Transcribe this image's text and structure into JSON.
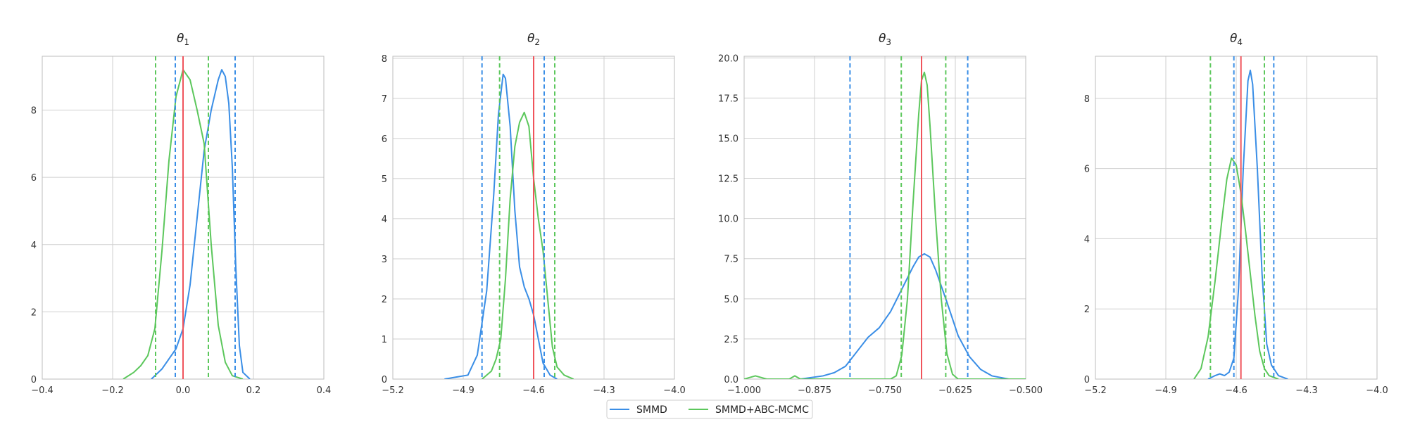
{
  "colors": {
    "smmd": "#3a8ee6",
    "abc": "#5cc75c",
    "truth": "#f0545c",
    "grid": "#cfcfcf",
    "frame": "#bdbdbd"
  },
  "legend": {
    "items": [
      {
        "label": "SMMD",
        "color_key": "smmd"
      },
      {
        "label": "SMMD+ABC-MCMC",
        "color_key": "abc"
      }
    ]
  },
  "chart_data": [
    {
      "type": "line",
      "title_symbol": "θ",
      "title_sub": "1",
      "xlim": [
        -0.4,
        0.4
      ],
      "ylim": [
        0,
        9.6
      ],
      "xticks": [
        -0.4,
        -0.2,
        0.0,
        0.2,
        0.4
      ],
      "xtick_labels": [
        "−0.4",
        "−0.2",
        "0.0",
        "0.2",
        "0.4"
      ],
      "yticks": [
        0,
        2,
        4,
        6,
        8
      ],
      "ytick_labels": [
        "0",
        "2",
        "4",
        "6",
        "8"
      ],
      "truth": 0.0,
      "smmd_ci": [
        -0.022,
        0.148
      ],
      "abc_ci": [
        -0.078,
        0.072
      ],
      "series": [
        {
          "name": "SMMD",
          "color_key": "smmd",
          "points": [
            [
              -0.09,
              0
            ],
            [
              -0.06,
              0.3
            ],
            [
              -0.04,
              0.6
            ],
            [
              -0.02,
              0.9
            ],
            [
              0.0,
              1.5
            ],
            [
              0.02,
              2.8
            ],
            [
              0.04,
              4.8
            ],
            [
              0.06,
              6.8
            ],
            [
              0.08,
              8.0
            ],
            [
              0.1,
              8.9
            ],
            [
              0.11,
              9.2
            ],
            [
              0.12,
              9.0
            ],
            [
              0.13,
              8.2
            ],
            [
              0.14,
              6.3
            ],
            [
              0.15,
              3.3
            ],
            [
              0.16,
              1.0
            ],
            [
              0.17,
              0.2
            ],
            [
              0.19,
              0
            ]
          ]
        },
        {
          "name": "SMMD+ABC-MCMC",
          "color_key": "abc",
          "points": [
            [
              -0.17,
              0
            ],
            [
              -0.14,
              0.2
            ],
            [
              -0.12,
              0.4
            ],
            [
              -0.1,
              0.7
            ],
            [
              -0.08,
              1.5
            ],
            [
              -0.06,
              3.8
            ],
            [
              -0.04,
              6.5
            ],
            [
              -0.02,
              8.4
            ],
            [
              0.0,
              9.2
            ],
            [
              0.02,
              8.9
            ],
            [
              0.04,
              8.0
            ],
            [
              0.06,
              7.0
            ],
            [
              0.08,
              4.0
            ],
            [
              0.1,
              1.6
            ],
            [
              0.12,
              0.5
            ],
            [
              0.14,
              0.1
            ],
            [
              0.17,
              0
            ]
          ]
        }
      ]
    },
    {
      "type": "line",
      "title_symbol": "θ",
      "title_sub": "2",
      "xlim": [
        -5.2,
        -4.0
      ],
      "ylim": [
        0,
        8.05
      ],
      "xticks": [
        -5.2,
        -4.9,
        -4.6,
        -4.3,
        -4.0
      ],
      "xtick_labels": [
        "−5.2",
        "−4.9",
        "−4.6",
        "−4.3",
        "−4.0"
      ],
      "yticks": [
        0,
        1,
        2,
        3,
        4,
        5,
        6,
        7,
        8
      ],
      "ytick_labels": [
        "0",
        "1",
        "2",
        "3",
        "4",
        "5",
        "6",
        "7",
        "8"
      ],
      "truth": -4.6,
      "smmd_ci": [
        -4.82,
        -4.555
      ],
      "abc_ci": [
        -4.745,
        -4.51
      ],
      "series": [
        {
          "name": "SMMD",
          "color_key": "smmd",
          "points": [
            [
              -4.98,
              0
            ],
            [
              -4.93,
              0.05
            ],
            [
              -4.88,
              0.1
            ],
            [
              -4.84,
              0.6
            ],
            [
              -4.8,
              2.2
            ],
            [
              -4.77,
              4.6
            ],
            [
              -4.75,
              6.6
            ],
            [
              -4.73,
              7.6
            ],
            [
              -4.72,
              7.5
            ],
            [
              -4.7,
              6.3
            ],
            [
              -4.68,
              4.2
            ],
            [
              -4.66,
              2.8
            ],
            [
              -4.64,
              2.3
            ],
            [
              -4.62,
              2.0
            ],
            [
              -4.6,
              1.6
            ],
            [
              -4.58,
              1.0
            ],
            [
              -4.56,
              0.4
            ],
            [
              -4.53,
              0.1
            ],
            [
              -4.5,
              0
            ]
          ]
        },
        {
          "name": "SMMD+ABC-MCMC",
          "color_key": "abc",
          "points": [
            [
              -4.82,
              0
            ],
            [
              -4.78,
              0.2
            ],
            [
              -4.76,
              0.5
            ],
            [
              -4.74,
              1.0
            ],
            [
              -4.72,
              2.5
            ],
            [
              -4.7,
              4.5
            ],
            [
              -4.68,
              5.8
            ],
            [
              -4.66,
              6.4
            ],
            [
              -4.64,
              6.65
            ],
            [
              -4.62,
              6.3
            ],
            [
              -4.6,
              5.0
            ],
            [
              -4.58,
              4.0
            ],
            [
              -4.56,
              3.2
            ],
            [
              -4.54,
              2.0
            ],
            [
              -4.52,
              0.8
            ],
            [
              -4.5,
              0.3
            ],
            [
              -4.47,
              0.1
            ],
            [
              -4.43,
              0
            ]
          ]
        }
      ]
    },
    {
      "type": "line",
      "title_symbol": "θ",
      "title_sub": "3",
      "xlim": [
        -1.0,
        -0.5
      ],
      "ylim": [
        0,
        20.1
      ],
      "xticks": [
        -1.0,
        -0.875,
        -0.75,
        -0.625,
        -0.5
      ],
      "xtick_labels": [
        "−1.000",
        "−0.875",
        "−0.750",
        "−0.625",
        "−0.500"
      ],
      "yticks": [
        0,
        2.5,
        5,
        7.5,
        10,
        12.5,
        15,
        17.5,
        20
      ],
      "ytick_labels": [
        "0.0",
        "2.5",
        "5.0",
        "7.5",
        "10.0",
        "12.5",
        "15.0",
        "17.5",
        "20.0"
      ],
      "truth": -0.685,
      "smmd_ci": [
        -0.812,
        -0.603
      ],
      "abc_ci": [
        -0.721,
        -0.642
      ],
      "series": [
        {
          "name": "SMMD",
          "color_key": "smmd",
          "points": [
            [
              -0.9,
              0
            ],
            [
              -0.86,
              0.2
            ],
            [
              -0.84,
              0.4
            ],
            [
              -0.82,
              0.8
            ],
            [
              -0.8,
              1.7
            ],
            [
              -0.78,
              2.6
            ],
            [
              -0.76,
              3.2
            ],
            [
              -0.74,
              4.2
            ],
            [
              -0.72,
              5.6
            ],
            [
              -0.7,
              7.0
            ],
            [
              -0.69,
              7.6
            ],
            [
              -0.68,
              7.8
            ],
            [
              -0.67,
              7.6
            ],
            [
              -0.66,
              6.8
            ],
            [
              -0.64,
              4.8
            ],
            [
              -0.62,
              2.7
            ],
            [
              -0.6,
              1.4
            ],
            [
              -0.58,
              0.6
            ],
            [
              -0.56,
              0.2
            ],
            [
              -0.53,
              0
            ]
          ]
        },
        {
          "name": "SMMD+ABC-MCMC",
          "color_key": "abc",
          "points": [
            [
              -1.0,
              0
            ],
            [
              -0.99,
              0.1
            ],
            [
              -0.98,
              0.2
            ],
            [
              -0.97,
              0.1
            ],
            [
              -0.96,
              0
            ],
            [
              -0.92,
              0
            ],
            [
              -0.91,
              0.2
            ],
            [
              -0.9,
              0
            ],
            [
              -0.74,
              0
            ],
            [
              -0.73,
              0.2
            ],
            [
              -0.72,
              1.5
            ],
            [
              -0.71,
              5.0
            ],
            [
              -0.7,
              11.0
            ],
            [
              -0.69,
              16.5
            ],
            [
              -0.685,
              18.6
            ],
            [
              -0.68,
              19.1
            ],
            [
              -0.675,
              18.3
            ],
            [
              -0.67,
              15.8
            ],
            [
              -0.66,
              10.0
            ],
            [
              -0.65,
              5.0
            ],
            [
              -0.64,
              1.6
            ],
            [
              -0.63,
              0.3
            ],
            [
              -0.62,
              0
            ],
            [
              -0.5,
              0
            ]
          ]
        }
      ]
    },
    {
      "type": "line",
      "title_symbol": "θ",
      "title_sub": "4",
      "xlim": [
        -5.2,
        -4.0
      ],
      "ylim": [
        0,
        9.2
      ],
      "xticks": [
        -5.2,
        -4.9,
        -4.6,
        -4.3,
        -4.0
      ],
      "xtick_labels": [
        "−5.2",
        "−4.9",
        "−4.6",
        "−4.3",
        "−4.0"
      ],
      "yticks": [
        0,
        2,
        4,
        6,
        8
      ],
      "ytick_labels": [
        "0",
        "2",
        "4",
        "6",
        "8"
      ],
      "truth": -4.58,
      "smmd_ci": [
        -4.61,
        -4.44
      ],
      "abc_ci": [
        -4.71,
        -4.48
      ],
      "series": [
        {
          "name": "SMMD",
          "color_key": "smmd",
          "points": [
            [
              -4.72,
              0
            ],
            [
              -4.69,
              0.1
            ],
            [
              -4.67,
              0.15
            ],
            [
              -4.65,
              0.1
            ],
            [
              -4.63,
              0.2
            ],
            [
              -4.61,
              0.6
            ],
            [
              -4.59,
              2.6
            ],
            [
              -4.57,
              6.0
            ],
            [
              -4.55,
              8.5
            ],
            [
              -4.54,
              8.8
            ],
            [
              -4.53,
              8.4
            ],
            [
              -4.51,
              6.0
            ],
            [
              -4.49,
              3.0
            ],
            [
              -4.47,
              1.0
            ],
            [
              -4.45,
              0.4
            ],
            [
              -4.42,
              0.1
            ],
            [
              -4.38,
              0
            ]
          ]
        },
        {
          "name": "SMMD+ABC-MCMC",
          "color_key": "abc",
          "points": [
            [
              -4.78,
              0
            ],
            [
              -4.75,
              0.3
            ],
            [
              -4.72,
              1.2
            ],
            [
              -4.69,
              2.8
            ],
            [
              -4.66,
              4.6
            ],
            [
              -4.64,
              5.7
            ],
            [
              -4.62,
              6.3
            ],
            [
              -4.6,
              6.1
            ],
            [
              -4.58,
              5.3
            ],
            [
              -4.56,
              4.2
            ],
            [
              -4.54,
              3.0
            ],
            [
              -4.52,
              1.8
            ],
            [
              -4.5,
              0.8
            ],
            [
              -4.48,
              0.3
            ],
            [
              -4.46,
              0.1
            ],
            [
              -4.42,
              0
            ]
          ]
        }
      ]
    }
  ]
}
